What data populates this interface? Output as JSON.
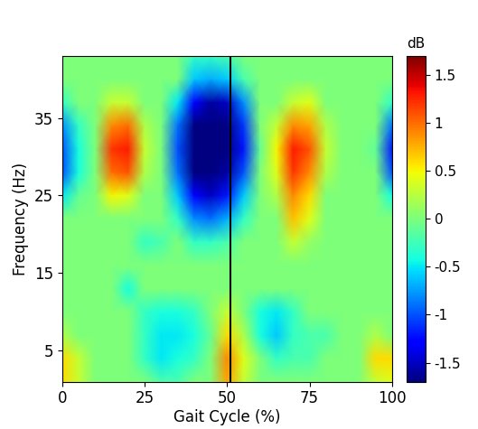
{
  "chart_data": {
    "type": "heatmap",
    "x_label": "Gait Cycle (%)",
    "y_label": "Frequency (Hz)",
    "x": [
      0,
      5,
      10,
      15,
      20,
      25,
      30,
      35,
      40,
      45,
      50,
      55,
      60,
      65,
      70,
      75,
      80,
      85,
      90,
      95,
      100
    ],
    "y": [
      1,
      4,
      7,
      10,
      13,
      16,
      19,
      22,
      25,
      28,
      31,
      34,
      37,
      40,
      43
    ],
    "cells": [
      [
        0.6,
        0.3,
        0,
        0,
        0,
        0,
        -0.2,
        -0.2,
        0,
        0,
        0.8,
        0.3,
        0,
        0,
        0,
        0,
        0,
        0,
        0,
        0.3,
        0.4
      ],
      [
        0.6,
        0.3,
        0,
        0,
        0,
        -0.3,
        -0.5,
        -0.4,
        -0.3,
        0,
        0.9,
        0.4,
        0,
        -0.3,
        -0.2,
        -0.2,
        0,
        0,
        0,
        0.6,
        0.6
      ],
      [
        0.2,
        0,
        0,
        0,
        0,
        -0.3,
        -0.5,
        -0.5,
        -0.4,
        -0.1,
        0.6,
        0.2,
        -0.4,
        -0.6,
        -0.3,
        -0.2,
        -0.2,
        0,
        0,
        0.2,
        0
      ],
      [
        0,
        0,
        0,
        0,
        0,
        -0.3,
        -0.4,
        -0.4,
        -0.3,
        0,
        0.3,
        0,
        -0.4,
        -0.5,
        -0.3,
        0,
        0,
        0,
        0,
        0,
        0
      ],
      [
        0,
        0,
        0,
        0,
        -0.4,
        0,
        0,
        0,
        0,
        0,
        0,
        0,
        0,
        0,
        0,
        0,
        0,
        0,
        0,
        0,
        0
      ],
      [
        0,
        0,
        0,
        0,
        0,
        0,
        0,
        0,
        0,
        0,
        0,
        0,
        0,
        0,
        0,
        0,
        0,
        0,
        0,
        0,
        0
      ],
      [
        0,
        0,
        0,
        0,
        0,
        -0.3,
        -0.2,
        0,
        -0.3,
        -0.3,
        -0.2,
        0,
        0,
        0,
        0.3,
        0.1,
        0,
        0,
        0,
        0,
        0
      ],
      [
        0,
        0,
        0,
        0,
        0,
        0,
        0,
        -0.3,
        -0.8,
        -0.9,
        -0.7,
        -0.3,
        0,
        0,
        0.7,
        0.4,
        0,
        0,
        0,
        0,
        0
      ],
      [
        -0.5,
        -0.1,
        0,
        0.5,
        0.4,
        0,
        0,
        -0.6,
        -1.3,
        -1.5,
        -1.2,
        -0.6,
        0,
        0.2,
        0.9,
        0.6,
        0,
        0,
        0,
        0,
        -0.4
      ],
      [
        -1.0,
        -0.4,
        0,
        1.0,
        1.1,
        0.2,
        0,
        -0.9,
        -1.7,
        -1.8,
        -1.6,
        -1.0,
        0,
        0.4,
        1.2,
        0.9,
        0.2,
        0,
        0,
        0,
        -1.0
      ],
      [
        -1.0,
        -0.4,
        0,
        1.2,
        1.3,
        0.3,
        0,
        -1.0,
        -1.8,
        -1.9,
        -1.8,
        -1.2,
        -0.1,
        0.5,
        1.3,
        1.1,
        0.3,
        0,
        0,
        -0.1,
        -1.2
      ],
      [
        -0.8,
        -0.3,
        0,
        0.9,
        1.0,
        0.2,
        0,
        -0.9,
        -1.7,
        -1.8,
        -1.7,
        -1.1,
        0,
        0.3,
        0.9,
        0.8,
        0.2,
        0,
        0,
        0,
        -0.9
      ],
      [
        -0.3,
        0,
        0,
        0.3,
        0.3,
        0,
        0,
        -0.5,
        -1.3,
        -1.6,
        -1.5,
        -0.8,
        0,
        0,
        0.3,
        0.4,
        0,
        0,
        0,
        0,
        -0.3
      ],
      [
        0,
        0,
        0,
        0,
        0,
        0,
        0,
        0,
        -0.6,
        -0.7,
        -0.6,
        -0.2,
        0,
        0,
        0,
        0,
        0,
        0,
        0,
        0,
        0
      ],
      [
        0,
        0,
        0,
        0,
        0,
        0,
        0,
        0,
        -0.3,
        -0.3,
        -0.2,
        0,
        0,
        0,
        0,
        0,
        0,
        0,
        0,
        0,
        0
      ]
    ],
    "xlim": [
      0,
      100
    ],
    "xticks": [
      0,
      25,
      50,
      75,
      100
    ],
    "ylim": [
      1,
      43
    ],
    "yticks": [
      5,
      15,
      25,
      35
    ],
    "colorbar_label": "dB",
    "colorbar_lim": [
      -1.7,
      1.7
    ],
    "colorbar_ticks": [
      -1.5,
      -1,
      -0.5,
      0,
      0.5,
      1,
      1.5
    ],
    "reference_line_x": 51
  }
}
